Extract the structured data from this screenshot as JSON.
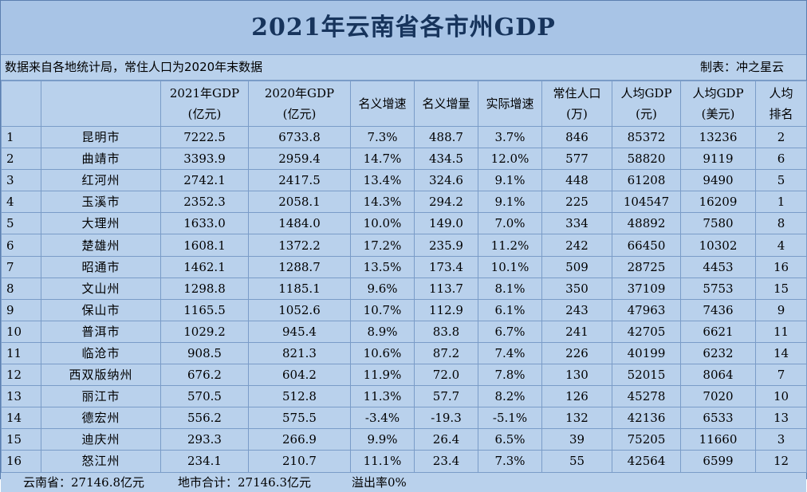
{
  "title": "2021年云南省各市州GDP",
  "note": "数据来自各地统计局，常住人口为2020年末数据",
  "maker": "制表：冲之星云",
  "headers": [
    {
      "line1": "",
      "line2": ""
    },
    {
      "line1": "",
      "line2": ""
    },
    {
      "line1": "2021年GDP",
      "line2": "(亿元)"
    },
    {
      "line1": "2020年GDP",
      "line2": "(亿元)"
    },
    {
      "line1": "名义增速",
      "line2": ""
    },
    {
      "line1": "名义增量",
      "line2": ""
    },
    {
      "line1": "实际增速",
      "line2": ""
    },
    {
      "line1": "常住人口",
      "line2": "(万)"
    },
    {
      "line1": "人均GDP",
      "line2": "(元)"
    },
    {
      "line1": "人均GDP",
      "line2": "(美元)"
    },
    {
      "line1": "人均",
      "line2": "排名"
    }
  ],
  "rows": [
    [
      "1",
      "昆明市",
      "7222.5",
      "6733.8",
      "7.3%",
      "488.7",
      "3.7%",
      "846",
      "85372",
      "13236",
      "2"
    ],
    [
      "2",
      "曲靖市",
      "3393.9",
      "2959.4",
      "14.7%",
      "434.5",
      "12.0%",
      "577",
      "58820",
      "9119",
      "6"
    ],
    [
      "3",
      "红河州",
      "2742.1",
      "2417.5",
      "13.4%",
      "324.6",
      "9.1%",
      "448",
      "61208",
      "9490",
      "5"
    ],
    [
      "4",
      "玉溪市",
      "2352.3",
      "2058.1",
      "14.3%",
      "294.2",
      "9.1%",
      "225",
      "104547",
      "16209",
      "1"
    ],
    [
      "5",
      "大理州",
      "1633.0",
      "1484.0",
      "10.0%",
      "149.0",
      "7.0%",
      "334",
      "48892",
      "7580",
      "8"
    ],
    [
      "6",
      "楚雄州",
      "1608.1",
      "1372.2",
      "17.2%",
      "235.9",
      "11.2%",
      "242",
      "66450",
      "10302",
      "4"
    ],
    [
      "7",
      "昭通市",
      "1462.1",
      "1288.7",
      "13.5%",
      "173.4",
      "10.1%",
      "509",
      "28725",
      "4453",
      "16"
    ],
    [
      "8",
      "文山州",
      "1298.8",
      "1185.1",
      "9.6%",
      "113.7",
      "8.1%",
      "350",
      "37109",
      "5753",
      "15"
    ],
    [
      "9",
      "保山市",
      "1165.5",
      "1052.6",
      "10.7%",
      "112.9",
      "6.1%",
      "243",
      "47963",
      "7436",
      "9"
    ],
    [
      "10",
      "普洱市",
      "1029.2",
      "945.4",
      "8.9%",
      "83.8",
      "6.7%",
      "241",
      "42705",
      "6621",
      "11"
    ],
    [
      "11",
      "临沧市",
      "908.5",
      "821.3",
      "10.6%",
      "87.2",
      "7.4%",
      "226",
      "40199",
      "6232",
      "14"
    ],
    [
      "12",
      "西双版纳州",
      "676.2",
      "604.2",
      "11.9%",
      "72.0",
      "7.8%",
      "130",
      "52015",
      "8064",
      "7"
    ],
    [
      "13",
      "丽江市",
      "570.5",
      "512.8",
      "11.3%",
      "57.7",
      "8.2%",
      "126",
      "45278",
      "7020",
      "10"
    ],
    [
      "14",
      "德宏州",
      "556.2",
      "575.5",
      "-3.4%",
      "-19.3",
      "-5.1%",
      "132",
      "42136",
      "6533",
      "13"
    ],
    [
      "15",
      "迪庆州",
      "293.3",
      "266.9",
      "9.9%",
      "26.4",
      "6.5%",
      "39",
      "75205",
      "11660",
      "3"
    ],
    [
      "16",
      "怒江州",
      "234.1",
      "210.7",
      "11.1%",
      "23.4",
      "7.3%",
      "55",
      "42564",
      "6599",
      "12"
    ]
  ],
  "footer": {
    "province": "云南省：27146.8亿元",
    "sum": "地市合计：27146.3亿元",
    "overflow": "溢出率0%"
  }
}
